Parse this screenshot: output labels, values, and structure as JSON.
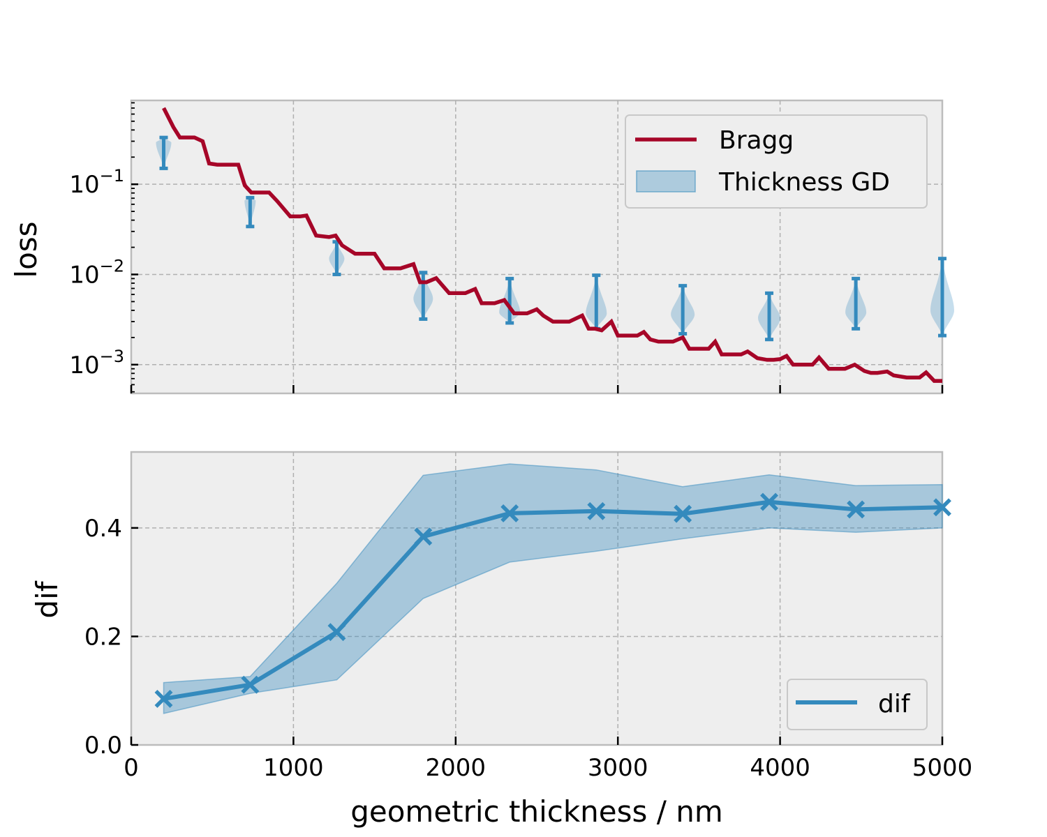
{
  "colors": {
    "bragg": "#a60628",
    "gd": "#348abd",
    "gd_fill": "#348abd",
    "panel_bg": "#eeeeee"
  },
  "chart_data": [
    {
      "type": "line",
      "title": "",
      "xlabel": "",
      "ylabel": "loss",
      "yscale": "log",
      "xlim": [
        0,
        5000
      ],
      "ylim": [
        0.00048,
        0.85
      ],
      "grid": true,
      "legend_position": "top-right",
      "y_tick_labels": [
        {
          "value": 0.1,
          "base": "10",
          "exp": "−1"
        },
        {
          "value": 0.01,
          "base": "10",
          "exp": "−2"
        },
        {
          "value": 0.001,
          "base": "10",
          "exp": "−3"
        }
      ],
      "legend": [
        {
          "label": "Bragg",
          "kind": "line"
        },
        {
          "label": "Thickness GD",
          "kind": "patch"
        }
      ],
      "series": [
        {
          "name": "Bragg",
          "kind": "step-line",
          "x": [
            200,
            260,
            300,
            390,
            440,
            480,
            530,
            570,
            660,
            700,
            740,
            790,
            850,
            900,
            980,
            1040,
            1080,
            1140,
            1220,
            1260,
            1300,
            1380,
            1420,
            1500,
            1560,
            1600,
            1660,
            1740,
            1780,
            1820,
            1880,
            1920,
            1960,
            2000,
            2060,
            2120,
            2160,
            2200,
            2240,
            2300,
            2360,
            2400,
            2440,
            2500,
            2540,
            2600,
            2660,
            2700,
            2780,
            2820,
            2860,
            2900,
            2960,
            3000,
            3080,
            3120,
            3160,
            3200,
            3250,
            3300,
            3340,
            3400,
            3440,
            3500,
            3560,
            3600,
            3640,
            3700,
            3760,
            3800,
            3860,
            3920,
            3960,
            4000,
            4040,
            4080,
            4140,
            4200,
            4240,
            4300,
            4360,
            4400,
            4460,
            4520,
            4560,
            4600,
            4660,
            4700,
            4780,
            4820,
            4860,
            4900,
            4950,
            5000
          ],
          "y": [
            0.7,
            0.43,
            0.33,
            0.33,
            0.3,
            0.17,
            0.165,
            0.165,
            0.165,
            0.097,
            0.081,
            0.081,
            0.081,
            0.065,
            0.044,
            0.044,
            0.045,
            0.027,
            0.026,
            0.027,
            0.021,
            0.017,
            0.017,
            0.017,
            0.0117,
            0.0117,
            0.0117,
            0.013,
            0.0082,
            0.0082,
            0.0091,
            0.0075,
            0.0062,
            0.0062,
            0.0062,
            0.0069,
            0.0048,
            0.0048,
            0.0048,
            0.0052,
            0.0037,
            0.0037,
            0.0037,
            0.0041,
            0.0035,
            0.003,
            0.003,
            0.003,
            0.0035,
            0.0025,
            0.0025,
            0.0024,
            0.003,
            0.0021,
            0.0021,
            0.0021,
            0.0023,
            0.0019,
            0.0018,
            0.0018,
            0.0018,
            0.002,
            0.0015,
            0.0015,
            0.0015,
            0.0018,
            0.0013,
            0.0013,
            0.0013,
            0.0014,
            0.00118,
            0.00113,
            0.00113,
            0.00115,
            0.00125,
            0.001,
            0.001,
            0.001,
            0.0012,
            0.0009,
            0.0009,
            0.0009,
            0.001,
            0.00085,
            0.00081,
            0.00081,
            0.00084,
            0.00076,
            0.00072,
            0.00072,
            0.00072,
            0.00082,
            0.00066,
            0.00066
          ]
        },
        {
          "name": "Thickness GD",
          "kind": "violin",
          "positions": [
            200,
            733,
            1267,
            1800,
            2333,
            2867,
            3400,
            3933,
            4467,
            5000
          ],
          "y_min": [
            0.15,
            0.034,
            0.01,
            0.0032,
            0.0029,
            0.0025,
            0.0022,
            0.0019,
            0.0025,
            0.0021
          ],
          "y_max": [
            0.33,
            0.071,
            0.023,
            0.0105,
            0.009,
            0.0098,
            0.0075,
            0.0062,
            0.009,
            0.015
          ],
          "y_center": [
            0.29,
            0.066,
            0.015,
            0.0054,
            0.0038,
            0.0037,
            0.0036,
            0.0033,
            0.0038,
            0.004
          ],
          "relative_width": [
            0.55,
            0.4,
            0.55,
            0.7,
            0.75,
            0.75,
            0.85,
            0.8,
            0.75,
            0.85
          ]
        }
      ]
    },
    {
      "type": "line",
      "title": "",
      "xlabel": "geometric thickness / nm",
      "ylabel": "dif",
      "xlim": [
        0,
        5000
      ],
      "ylim": [
        0,
        0.54
      ],
      "grid": true,
      "legend_position": "bottom-right",
      "x_ticks": [
        0,
        1000,
        2000,
        3000,
        4000,
        5000
      ],
      "x_tick_labels": [
        "0",
        "1000",
        "2000",
        "3000",
        "4000",
        "5000"
      ],
      "y_ticks": [
        0.0,
        0.2,
        0.4
      ],
      "y_tick_labels": [
        "0.0",
        "0.2",
        "0.4"
      ],
      "legend": [
        {
          "label": "dif",
          "kind": "line"
        }
      ],
      "series": [
        {
          "name": "dif",
          "marker": "x",
          "x": [
            200,
            733,
            1267,
            1800,
            2333,
            2867,
            3400,
            3933,
            4467,
            5000
          ],
          "y": [
            0.085,
            0.111,
            0.208,
            0.384,
            0.427,
            0.431,
            0.426,
            0.448,
            0.434,
            0.438
          ],
          "band_lower": [
            0.058,
            0.095,
            0.12,
            0.27,
            0.337,
            0.357,
            0.38,
            0.4,
            0.392,
            0.4
          ],
          "band_upper": [
            0.115,
            0.126,
            0.298,
            0.497,
            0.518,
            0.507,
            0.476,
            0.498,
            0.478,
            0.48
          ]
        }
      ]
    }
  ]
}
